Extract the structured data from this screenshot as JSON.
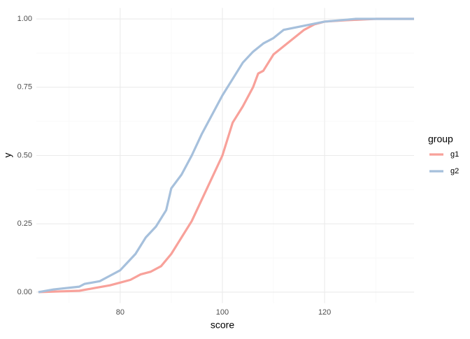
{
  "chart_data": {
    "type": "line",
    "x_label": "score",
    "y_label": "y",
    "legend_title": "group",
    "legend_position": "right",
    "grid": true,
    "xlim": [
      63.6,
      137.5
    ],
    "ylim": [
      -0.04,
      1.04
    ],
    "xticks": [
      80,
      100,
      120
    ],
    "xminor": [
      70,
      90,
      110,
      130
    ],
    "yticks": [
      {
        "value": 0,
        "label": "0.00"
      },
      {
        "value": 0.25,
        "label": "0.25"
      },
      {
        "value": 0.5,
        "label": "0.50"
      },
      {
        "value": 0.75,
        "label": "0.75"
      },
      {
        "value": 1,
        "label": "1.00"
      }
    ],
    "yminor": [
      0.125,
      0.375,
      0.625,
      0.875
    ],
    "series": [
      {
        "name": "g1",
        "color": "#f8a19a",
        "x": [
          64,
          72,
          75,
          78,
          80,
          82,
          84,
          86,
          88,
          90,
          92,
          94,
          96,
          98,
          100,
          101,
          102,
          104,
          106,
          107,
          108,
          110,
          112,
          114,
          116,
          118,
          120,
          124,
          130,
          137.5
        ],
        "values": [
          0,
          0.005,
          0.015,
          0.025,
          0.035,
          0.045,
          0.065,
          0.075,
          0.095,
          0.14,
          0.2,
          0.26,
          0.34,
          0.42,
          0.5,
          0.56,
          0.62,
          0.68,
          0.75,
          0.8,
          0.81,
          0.87,
          0.9,
          0.93,
          0.96,
          0.98,
          0.99,
          0.995,
          1,
          1
        ]
      },
      {
        "name": "g2",
        "color": "#a6c0dc",
        "x": [
          64,
          67,
          72,
          73,
          76,
          78,
          80,
          81,
          83,
          85,
          87,
          89,
          90,
          92,
          94,
          96,
          98,
          100,
          102,
          104,
          106,
          108,
          110,
          112,
          116,
          120,
          126,
          137.5
        ],
        "values": [
          0,
          0.01,
          0.02,
          0.03,
          0.04,
          0.06,
          0.08,
          0.1,
          0.14,
          0.2,
          0.24,
          0.3,
          0.38,
          0.43,
          0.5,
          0.58,
          0.65,
          0.72,
          0.78,
          0.84,
          0.88,
          0.91,
          0.93,
          0.96,
          0.975,
          0.99,
          1,
          1
        ]
      }
    ]
  }
}
